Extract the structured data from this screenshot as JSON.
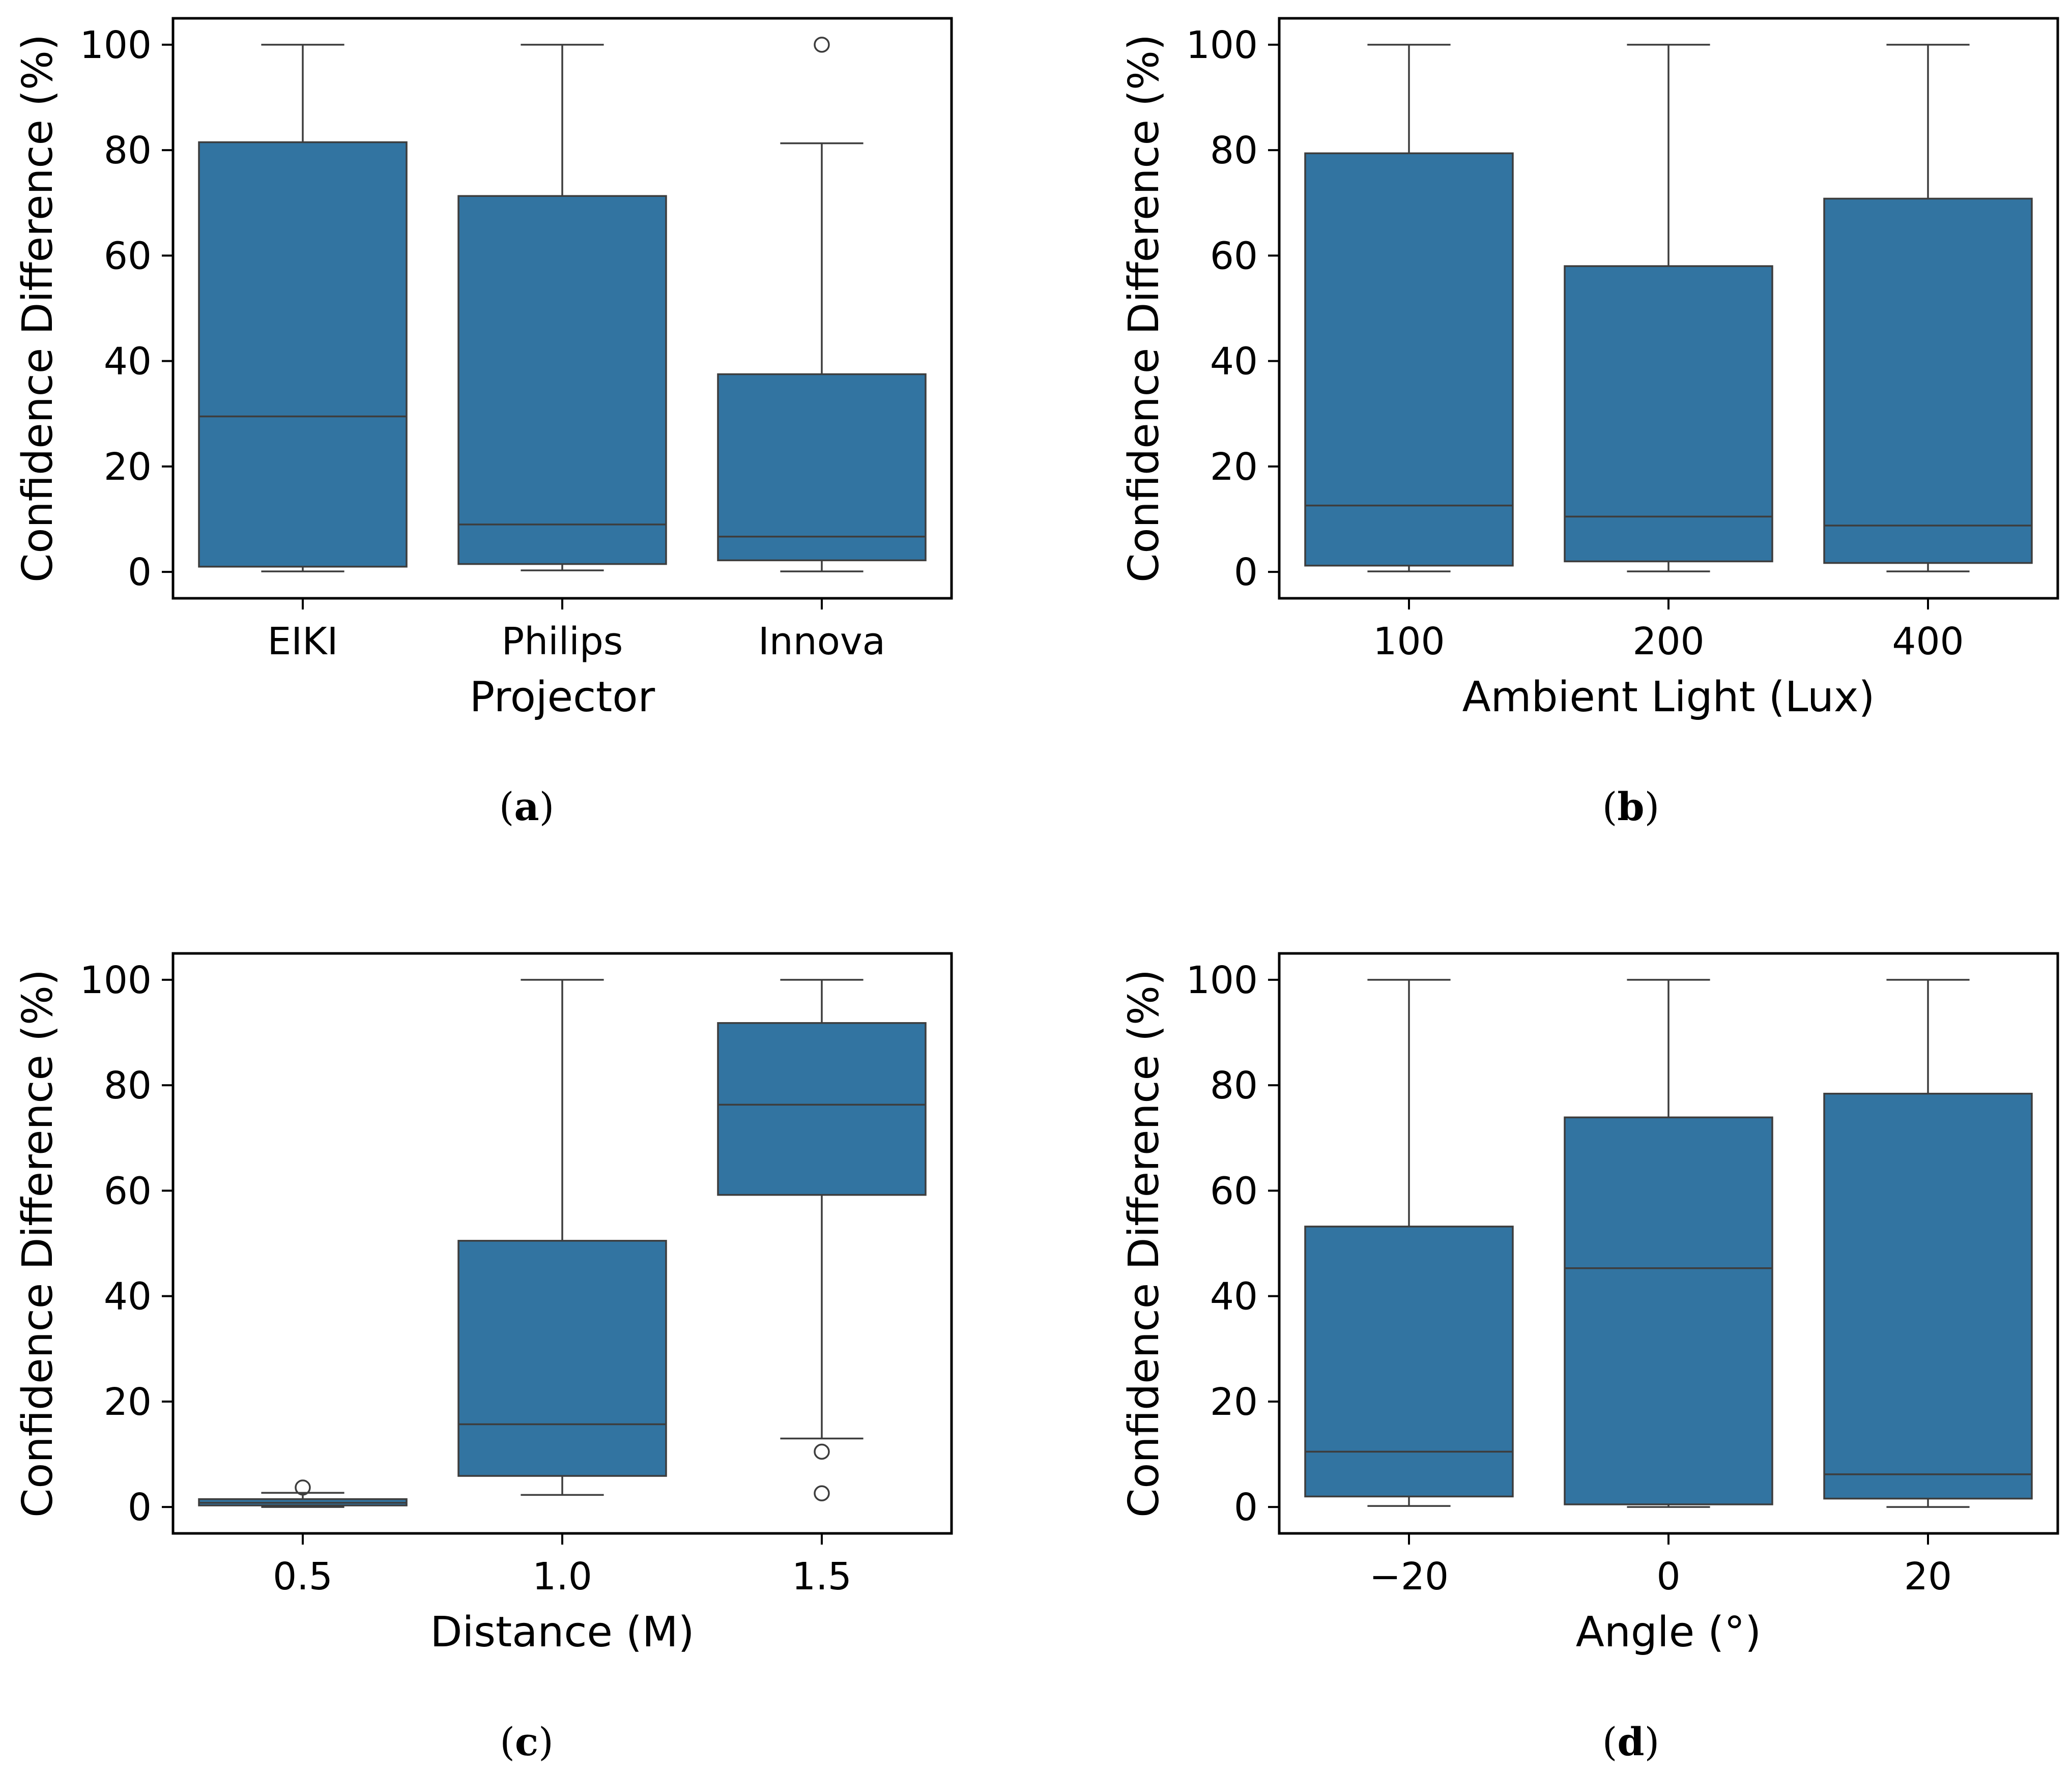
{
  "colors": {
    "box_fill": "#3274A1",
    "line": "#3d3d3d",
    "axis": "#000000",
    "background": "#ffffff"
  },
  "chart_data": [
    {
      "type": "box",
      "caption": "(a)",
      "caption_letter": "a",
      "xlabel": "Projector",
      "ylabel": "Confidence Difference (%)",
      "ylim": [
        -5,
        105
      ],
      "yticks": [
        0,
        20,
        40,
        60,
        80,
        100
      ],
      "categories": [
        "EIKI",
        "Philips",
        "Innova"
      ],
      "boxes": [
        {
          "whisker_low": 0.1,
          "q1": 1.0,
          "median": 29.5,
          "q3": 81.5,
          "whisker_high": 100,
          "outliers": []
        },
        {
          "whisker_low": 0.3,
          "q1": 1.5,
          "median": 9.0,
          "q3": 71.3,
          "whisker_high": 100,
          "outliers": []
        },
        {
          "whisker_low": 0.1,
          "q1": 2.2,
          "median": 6.7,
          "q3": 37.5,
          "whisker_high": 81.3,
          "outliers": [
            100
          ]
        }
      ]
    },
    {
      "type": "box",
      "caption": "(b)",
      "caption_letter": "b",
      "xlabel": "Ambient Light (Lux)",
      "ylabel": "Confidence Difference (%)",
      "ylim": [
        -5,
        105
      ],
      "yticks": [
        0,
        20,
        40,
        60,
        80,
        100
      ],
      "categories": [
        "100",
        "200",
        "400"
      ],
      "boxes": [
        {
          "whisker_low": 0.1,
          "q1": 1.2,
          "median": 12.6,
          "q3": 79.4,
          "whisker_high": 100,
          "outliers": []
        },
        {
          "whisker_low": 0.1,
          "q1": 2.0,
          "median": 10.5,
          "q3": 58.0,
          "whisker_high": 100,
          "outliers": []
        },
        {
          "whisker_low": 0.1,
          "q1": 1.7,
          "median": 8.8,
          "q3": 70.8,
          "whisker_high": 100,
          "outliers": []
        }
      ]
    },
    {
      "type": "box",
      "caption": "(c)",
      "caption_letter": "c",
      "xlabel": "Distance (M)",
      "ylabel": "Confidence Difference (%)",
      "ylim": [
        -5,
        105
      ],
      "yticks": [
        0,
        20,
        40,
        60,
        80,
        100
      ],
      "categories": [
        "0.5",
        "1.0",
        "1.5"
      ],
      "boxes": [
        {
          "whisker_low": 0.0,
          "q1": 0.3,
          "median": 0.8,
          "q3": 1.5,
          "whisker_high": 2.7,
          "outliers": [
            3.7
          ]
        },
        {
          "whisker_low": 2.3,
          "q1": 5.9,
          "median": 15.7,
          "q3": 50.5,
          "whisker_high": 100,
          "outliers": []
        },
        {
          "whisker_low": 13.0,
          "q1": 59.2,
          "median": 76.3,
          "q3": 91.8,
          "whisker_high": 100,
          "outliers": [
            10.5,
            2.6
          ]
        }
      ]
    },
    {
      "type": "box",
      "caption": "(d)",
      "caption_letter": "d",
      "xlabel": "Angle (°)",
      "ylabel": "Confidence Difference (%)",
      "ylim": [
        -5,
        105
      ],
      "yticks": [
        0,
        20,
        40,
        60,
        80,
        100
      ],
      "categories": [
        "−20",
        "0",
        "20"
      ],
      "boxes": [
        {
          "whisker_low": 0.2,
          "q1": 2.0,
          "median": 10.5,
          "q3": 53.2,
          "whisker_high": 100,
          "outliers": []
        },
        {
          "whisker_low": 0.0,
          "q1": 0.5,
          "median": 45.3,
          "q3": 73.9,
          "whisker_high": 100,
          "outliers": []
        },
        {
          "whisker_low": 0.0,
          "q1": 1.6,
          "median": 6.2,
          "q3": 78.4,
          "whisker_high": 100,
          "outliers": []
        }
      ]
    }
  ]
}
